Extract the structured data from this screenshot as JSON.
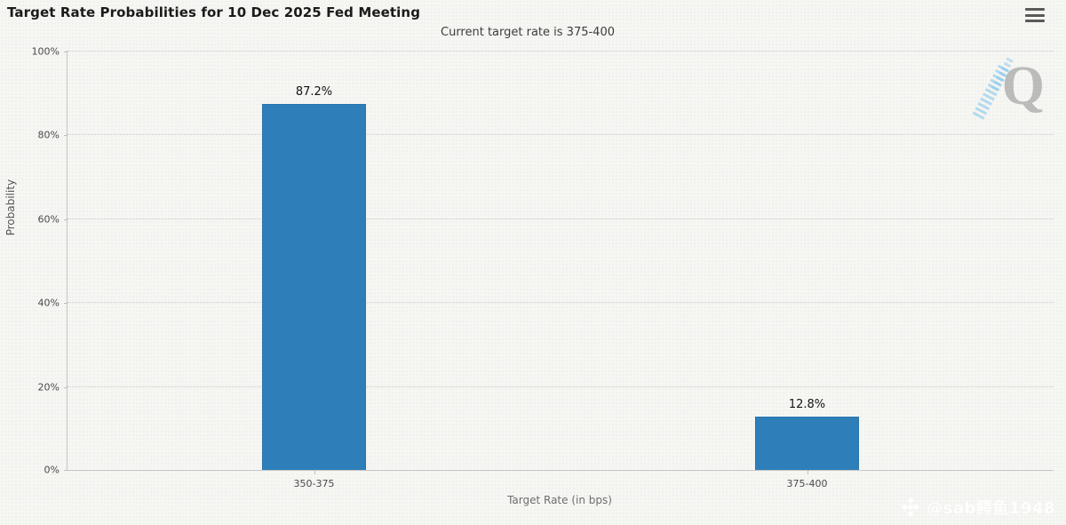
{
  "header": {
    "title": "Target Rate Probabilities for 10 Dec 2025 Fed Meeting",
    "subtitle": "Current target rate is 375-400"
  },
  "chart_data": {
    "type": "bar",
    "categories": [
      "350-375",
      "375-400"
    ],
    "values": [
      87.2,
      12.8
    ],
    "value_labels": [
      "87.2%",
      "12.8%"
    ],
    "title": "Target Rate Probabilities for 10 Dec 2025 Fed Meeting",
    "subtitle": "Current target rate is 375-400",
    "xlabel": "Target Rate (in bps)",
    "ylabel": "Probability",
    "ylim": [
      0,
      100
    ],
    "yticks": [
      0,
      20,
      40,
      60,
      80,
      100
    ],
    "ytick_labels": [
      "0%",
      "20%",
      "40%",
      "60%",
      "80%",
      "100%"
    ],
    "grid": true,
    "legend": false,
    "bar_color": "#2e7fb9"
  },
  "watermarks": {
    "logo_letter": "Q",
    "handle": "@sab鳄鱼1948"
  }
}
